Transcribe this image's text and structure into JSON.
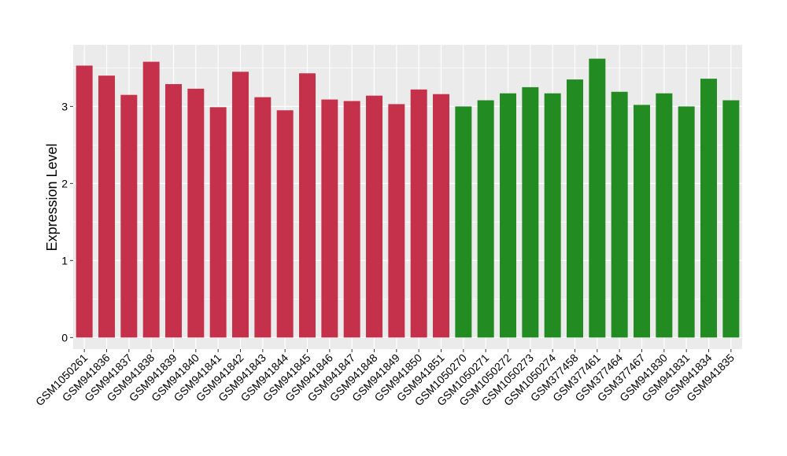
{
  "chart_data": {
    "type": "bar",
    "title": "",
    "xlabel": "",
    "ylabel": "Expression Level",
    "ylim": [
      -0.15,
      3.8
    ],
    "yticks": [
      0,
      1,
      2,
      3
    ],
    "grid": true,
    "legend": "none",
    "colors": {
      "panel_bg": "#EBEBEB",
      "grid_major": "#FFFFFF",
      "group_a": "#C5314A",
      "group_b": "#228B22"
    },
    "categories": [
      "GSM1050261",
      "GSM941836",
      "GSM941837",
      "GSM941838",
      "GSM941839",
      "GSM941840",
      "GSM941841",
      "GSM941842",
      "GSM941843",
      "GSM941844",
      "GSM941845",
      "GSM941846",
      "GSM941847",
      "GSM941848",
      "GSM941849",
      "GSM941850",
      "GSM941851",
      "GSM1050270",
      "GSM1050271",
      "GSM1050272",
      "GSM1050273",
      "GSM1050274",
      "GSM377458",
      "GSM377461",
      "GSM377464",
      "GSM377467",
      "GSM941830",
      "GSM941831",
      "GSM941834",
      "GSM941835"
    ],
    "values": [
      3.53,
      3.4,
      3.15,
      3.58,
      3.29,
      3.23,
      2.99,
      3.45,
      3.12,
      2.95,
      3.43,
      3.09,
      3.07,
      3.14,
      3.03,
      3.22,
      3.16,
      3.0,
      3.08,
      3.17,
      3.25,
      3.17,
      3.35,
      3.62,
      3.19,
      3.02,
      3.17,
      3.0,
      3.36,
      3.08
    ],
    "groups": [
      "a",
      "a",
      "a",
      "a",
      "a",
      "a",
      "a",
      "a",
      "a",
      "a",
      "a",
      "a",
      "a",
      "a",
      "a",
      "a",
      "a",
      "b",
      "b",
      "b",
      "b",
      "b",
      "b",
      "b",
      "b",
      "b",
      "b",
      "b",
      "b",
      "b"
    ]
  }
}
